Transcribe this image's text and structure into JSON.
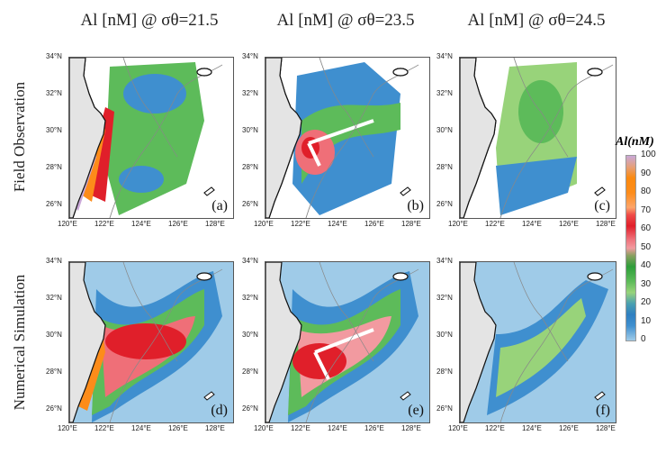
{
  "titles": [
    "Al [nM] @ σθ=21.5",
    "Al [nM] @ σθ=23.5",
    "Al [nM] @ σθ=24.5"
  ],
  "row_labels": [
    "Field Observation",
    "Numerical Simulation"
  ],
  "panel_labels": [
    "(a)",
    "(b)",
    "(c)",
    "(d)",
    "(e)",
    "(f)"
  ],
  "lat_ticks": [
    "34°N",
    "32°N",
    "30°N",
    "28°N",
    "26°N"
  ],
  "lon_ticks": [
    "120°E",
    "122°E",
    "124°E",
    "126°E",
    "128°E"
  ],
  "colorbar": {
    "title": "Al(nM)",
    "ticks": [
      "100",
      "90",
      "80",
      "70",
      "60",
      "50",
      "40",
      "30",
      "20",
      "10",
      "0"
    ]
  }
}
